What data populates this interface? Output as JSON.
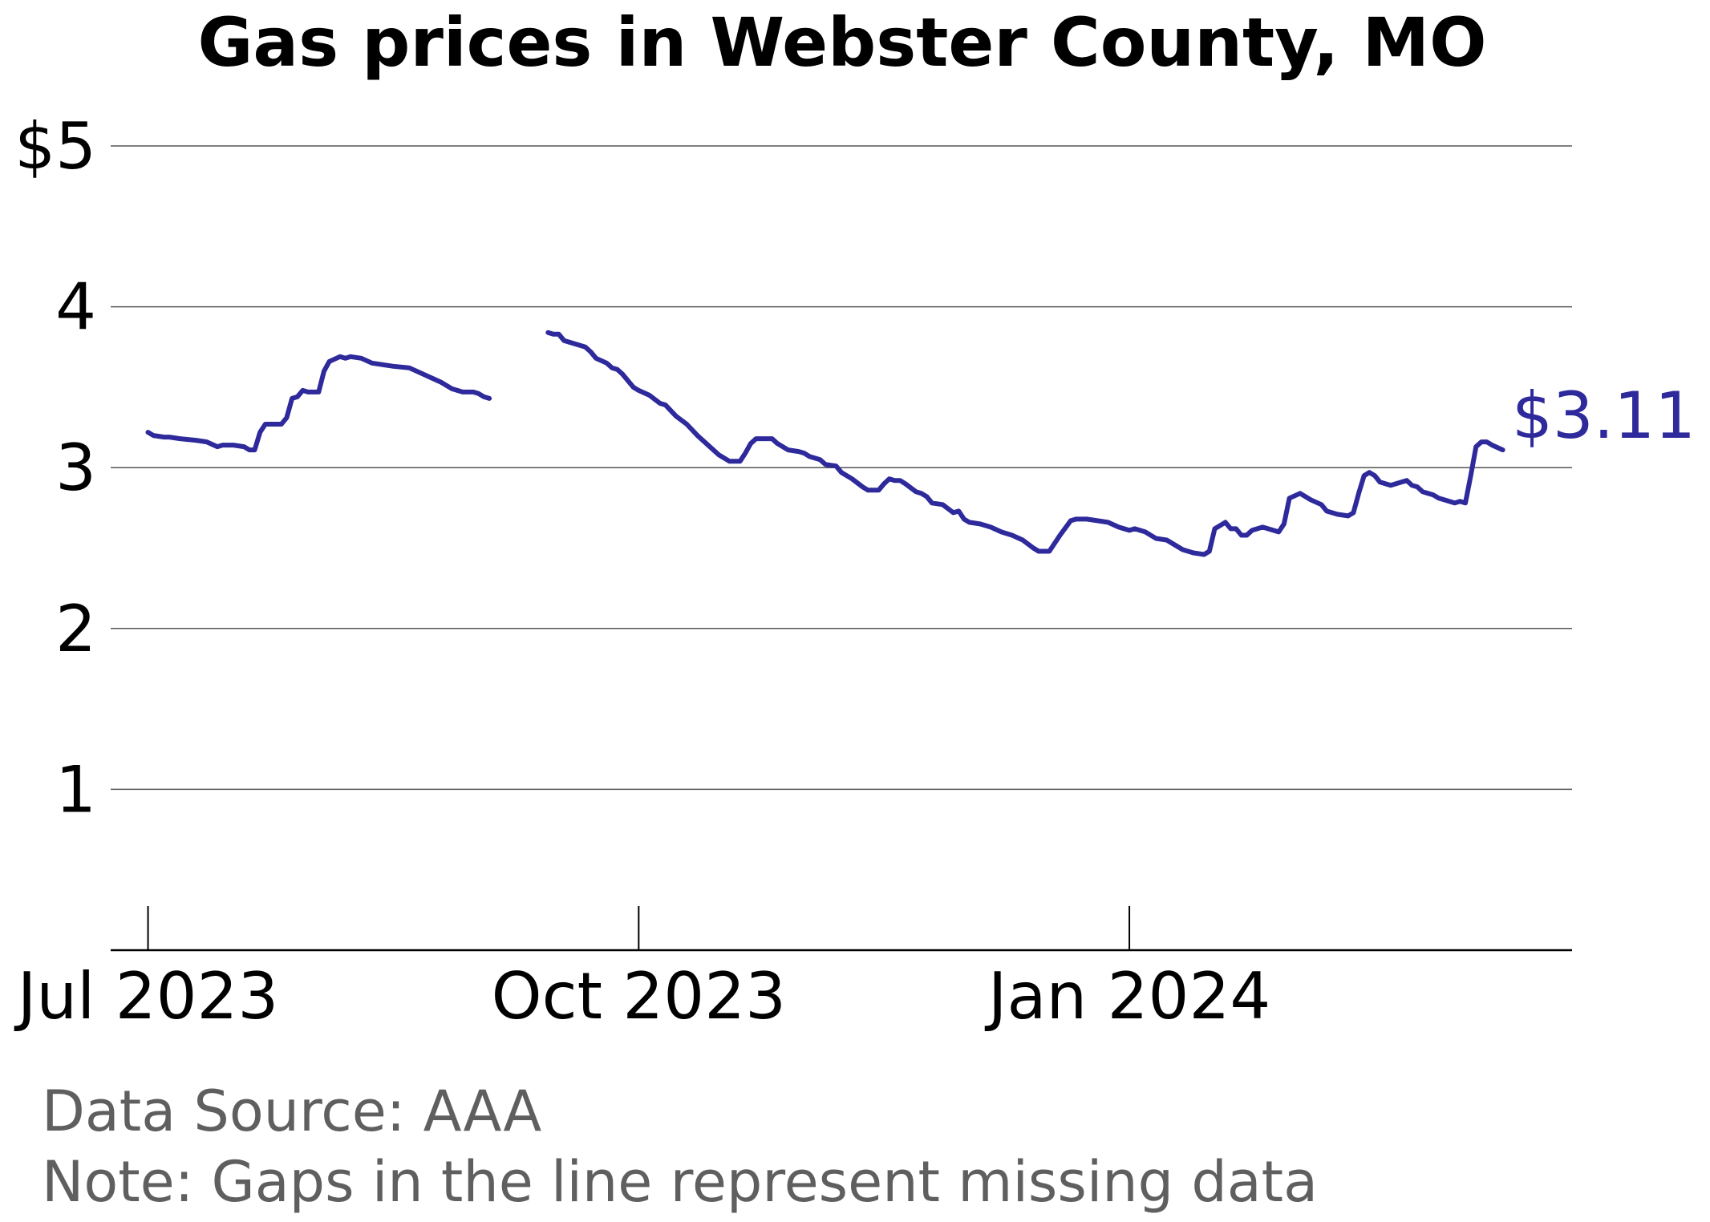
{
  "chart_data": {
    "type": "line",
    "title": "Gas prices in Webster County, MO",
    "xlabel": "",
    "ylabel": "",
    "ylim": [
      0,
      5
    ],
    "xlim": [
      "2023-06-24",
      "2024-03-24"
    ],
    "y_ticks": [
      {
        "value": 5,
        "label": "$5"
      },
      {
        "value": 4,
        "label": "4"
      },
      {
        "value": 3,
        "label": "3"
      },
      {
        "value": 2,
        "label": "2"
      },
      {
        "value": 1,
        "label": "1"
      }
    ],
    "x_ticks": [
      {
        "value": "2023-07-01",
        "label": "Jul 2023"
      },
      {
        "value": "2023-10-01",
        "label": "Oct 2023"
      },
      {
        "value": "2024-01-01",
        "label": "Jan 2024"
      }
    ],
    "grid": "horizontal",
    "line_color": "#2e2a9c",
    "end_label": "$3.11",
    "footnotes": [
      "Data Source: AAA",
      "Note: Gaps in the line represent missing data"
    ],
    "series": [
      {
        "segments": [
          [
            [
              "2023-07-01",
              3.22
            ],
            [
              "2023-07-02",
              3.2
            ],
            [
              "2023-07-04",
              3.19
            ],
            [
              "2023-07-05",
              3.19
            ],
            [
              "2023-07-07",
              3.18
            ],
            [
              "2023-07-10",
              3.17
            ],
            [
              "2023-07-12",
              3.16
            ],
            [
              "2023-07-14",
              3.13
            ],
            [
              "2023-07-15",
              3.14
            ],
            [
              "2023-07-17",
              3.14
            ],
            [
              "2023-07-19",
              3.13
            ],
            [
              "2023-07-20",
              3.11
            ],
            [
              "2023-07-21",
              3.11
            ],
            [
              "2023-07-22",
              3.22
            ],
            [
              "2023-07-23",
              3.27
            ],
            [
              "2023-07-24",
              3.27
            ],
            [
              "2023-07-26",
              3.27
            ],
            [
              "2023-07-27",
              3.31
            ],
            [
              "2023-07-28",
              3.43
            ],
            [
              "2023-07-29",
              3.44
            ],
            [
              "2023-07-30",
              3.48
            ],
            [
              "2023-07-31",
              3.47
            ],
            [
              "2023-08-02",
              3.47
            ],
            [
              "2023-08-03",
              3.6
            ],
            [
              "2023-08-04",
              3.66
            ],
            [
              "2023-08-06",
              3.69
            ],
            [
              "2023-08-07",
              3.68
            ],
            [
              "2023-08-08",
              3.69
            ],
            [
              "2023-08-10",
              3.68
            ],
            [
              "2023-08-12",
              3.65
            ],
            [
              "2023-08-14",
              3.64
            ],
            [
              "2023-08-16",
              3.63
            ],
            [
              "2023-08-19",
              3.62
            ],
            [
              "2023-08-21",
              3.59
            ],
            [
              "2023-08-23",
              3.56
            ],
            [
              "2023-08-25",
              3.53
            ],
            [
              "2023-08-27",
              3.49
            ],
            [
              "2023-08-29",
              3.47
            ],
            [
              "2023-08-31",
              3.47
            ],
            [
              "2023-09-01",
              3.46
            ],
            [
              "2023-09-02",
              3.44
            ],
            [
              "2023-09-03",
              3.43
            ]
          ],
          [
            [
              "2023-09-14",
              3.84
            ],
            [
              "2023-09-15",
              3.83
            ],
            [
              "2023-09-16",
              3.83
            ],
            [
              "2023-09-17",
              3.79
            ],
            [
              "2023-09-19",
              3.77
            ],
            [
              "2023-09-21",
              3.75
            ],
            [
              "2023-09-22",
              3.72
            ],
            [
              "2023-09-23",
              3.68
            ],
            [
              "2023-09-25",
              3.65
            ],
            [
              "2023-09-26",
              3.62
            ],
            [
              "2023-09-27",
              3.61
            ],
            [
              "2023-09-28",
              3.58
            ],
            [
              "2023-09-30",
              3.5
            ],
            [
              "2023-10-01",
              3.48
            ],
            [
              "2023-10-03",
              3.45
            ],
            [
              "2023-10-05",
              3.4
            ],
            [
              "2023-10-06",
              3.39
            ],
            [
              "2023-10-08",
              3.32
            ],
            [
              "2023-10-10",
              3.27
            ],
            [
              "2023-10-12",
              3.2
            ],
            [
              "2023-10-14",
              3.14
            ],
            [
              "2023-10-16",
              3.08
            ],
            [
              "2023-10-18",
              3.04
            ],
            [
              "2023-10-20",
              3.04
            ],
            [
              "2023-10-21",
              3.09
            ],
            [
              "2023-10-22",
              3.15
            ],
            [
              "2023-10-23",
              3.18
            ],
            [
              "2023-10-24",
              3.18
            ],
            [
              "2023-10-26",
              3.18
            ],
            [
              "2023-10-27",
              3.15
            ],
            [
              "2023-10-29",
              3.11
            ],
            [
              "2023-10-31",
              3.1
            ],
            [
              "2023-11-01",
              3.09
            ],
            [
              "2023-11-02",
              3.07
            ],
            [
              "2023-11-04",
              3.05
            ],
            [
              "2023-11-05",
              3.02
            ],
            [
              "2023-11-07",
              3.01
            ],
            [
              "2023-11-08",
              2.97
            ],
            [
              "2023-11-10",
              2.93
            ],
            [
              "2023-11-12",
              2.88
            ],
            [
              "2023-11-13",
              2.86
            ],
            [
              "2023-11-15",
              2.86
            ],
            [
              "2023-11-16",
              2.9
            ],
            [
              "2023-11-17",
              2.93
            ],
            [
              "2023-11-18",
              2.92
            ],
            [
              "2023-11-19",
              2.92
            ],
            [
              "2023-11-20",
              2.9
            ],
            [
              "2023-11-22",
              2.85
            ],
            [
              "2023-11-23",
              2.84
            ],
            [
              "2023-11-24",
              2.82
            ],
            [
              "2023-11-25",
              2.78
            ],
            [
              "2023-11-27",
              2.77
            ],
            [
              "2023-11-29",
              2.72
            ],
            [
              "2023-11-30",
              2.73
            ],
            [
              "2023-12-01",
              2.68
            ],
            [
              "2023-12-02",
              2.66
            ],
            [
              "2023-12-04",
              2.65
            ],
            [
              "2023-12-06",
              2.63
            ],
            [
              "2023-12-08",
              2.6
            ],
            [
              "2023-12-10",
              2.58
            ],
            [
              "2023-12-12",
              2.55
            ],
            [
              "2023-12-14",
              2.5
            ],
            [
              "2023-12-15",
              2.48
            ],
            [
              "2023-12-17",
              2.48
            ],
            [
              "2023-12-19",
              2.58
            ],
            [
              "2023-12-21",
              2.67
            ],
            [
              "2023-12-22",
              2.68
            ],
            [
              "2023-12-24",
              2.68
            ],
            [
              "2023-12-26",
              2.67
            ],
            [
              "2023-12-28",
              2.66
            ],
            [
              "2023-12-30",
              2.63
            ],
            [
              "2024-01-01",
              2.61
            ],
            [
              "2024-01-02",
              2.62
            ],
            [
              "2024-01-04",
              2.6
            ],
            [
              "2024-01-06",
              2.56
            ],
            [
              "2024-01-08",
              2.55
            ],
            [
              "2024-01-09",
              2.53
            ],
            [
              "2024-01-11",
              2.49
            ],
            [
              "2024-01-13",
              2.47
            ],
            [
              "2024-01-15",
              2.46
            ],
            [
              "2024-01-16",
              2.48
            ],
            [
              "2024-01-17",
              2.62
            ],
            [
              "2024-01-19",
              2.66
            ],
            [
              "2024-01-20",
              2.62
            ],
            [
              "2024-01-21",
              2.62
            ],
            [
              "2024-01-22",
              2.58
            ],
            [
              "2024-01-23",
              2.58
            ],
            [
              "2024-01-24",
              2.61
            ],
            [
              "2024-01-26",
              2.63
            ],
            [
              "2024-01-28",
              2.61
            ],
            [
              "2024-01-29",
              2.6
            ],
            [
              "2024-01-30",
              2.65
            ],
            [
              "2024-01-31",
              2.81
            ],
            [
              "2024-02-02",
              2.84
            ],
            [
              "2024-02-04",
              2.8
            ],
            [
              "2024-02-06",
              2.77
            ],
            [
              "2024-02-07",
              2.73
            ],
            [
              "2024-02-09",
              2.71
            ],
            [
              "2024-02-11",
              2.7
            ],
            [
              "2024-02-12",
              2.72
            ],
            [
              "2024-02-13",
              2.84
            ],
            [
              "2024-02-14",
              2.95
            ],
            [
              "2024-02-15",
              2.97
            ],
            [
              "2024-02-16",
              2.95
            ],
            [
              "2024-02-17",
              2.91
            ],
            [
              "2024-02-19",
              2.89
            ],
            [
              "2024-02-21",
              2.91
            ],
            [
              "2024-02-22",
              2.92
            ],
            [
              "2024-02-23",
              2.89
            ],
            [
              "2024-02-24",
              2.88
            ],
            [
              "2024-02-25",
              2.85
            ],
            [
              "2024-02-27",
              2.83
            ],
            [
              "2024-02-28",
              2.81
            ],
            [
              "2024-03-02",
              2.78
            ],
            [
              "2024-03-03",
              2.79
            ],
            [
              "2024-03-04",
              2.78
            ],
            [
              "2024-03-05",
              2.95
            ],
            [
              "2024-03-06",
              3.13
            ],
            [
              "2024-03-07",
              3.16
            ],
            [
              "2024-03-08",
              3.16
            ],
            [
              "2024-03-09",
              3.14
            ],
            [
              "2024-03-11",
              3.11
            ]
          ]
        ]
      }
    ]
  }
}
